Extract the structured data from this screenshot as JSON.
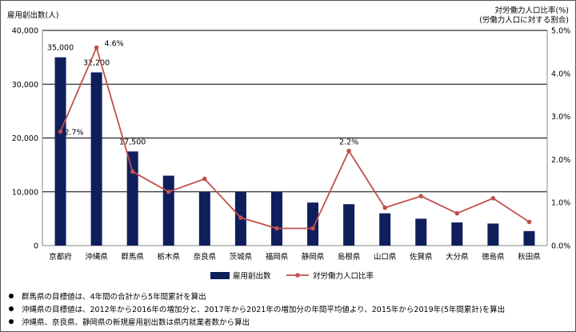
{
  "axis_titles": {
    "left": "雇用創出数(人)",
    "right_line1": "対労働力人口比率(%)",
    "right_line2": "(労働力人口に対する割合)"
  },
  "notes": [
    "群馬県の目標値は、4年間の合計から5年間累計を算出",
    "沖縄県の目標値は、2012年から2016年の増加分と、2017年から2021年の増加分の年間平均値より、2015年から2019年(5年間累計)を算出",
    "沖縄県、奈良県、静岡県の新規雇用創出数は県内就業者数から算出"
  ],
  "chart_data": {
    "type": "bar",
    "categories": [
      "京都府",
      "沖縄県",
      "群馬県",
      "栃木県",
      "奈良県",
      "茨城県",
      "福岡県",
      "静岡県",
      "島根県",
      "山口県",
      "佐賀県",
      "大分県",
      "徳島県",
      "秋田県"
    ],
    "series": [
      {
        "name": "雇用創出数",
        "type": "bar",
        "axis": "left",
        "color": "#0f1f5c",
        "values": [
          35000,
          32200,
          17500,
          13000,
          10000,
          10000,
          10000,
          8000,
          7700,
          6000,
          5000,
          4300,
          4100,
          2700
        ]
      },
      {
        "name": "対労働力人口比率",
        "type": "line",
        "axis": "right",
        "color": "#c0504d",
        "values": [
          2.65,
          4.6,
          1.72,
          1.25,
          1.55,
          0.65,
          0.4,
          0.4,
          2.2,
          0.88,
          1.15,
          0.75,
          1.1,
          0.55
        ]
      }
    ],
    "bar_labels": [
      {
        "index": 0,
        "text": "35,000"
      },
      {
        "index": 1,
        "text": "32,200"
      },
      {
        "index": 2,
        "text": "17,500"
      }
    ],
    "line_labels": [
      {
        "index": 0,
        "text": "2.7%"
      },
      {
        "index": 1,
        "text": "4.6%"
      },
      {
        "index": 8,
        "text": "2.2%"
      }
    ],
    "y_left": {
      "min": 0,
      "max": 40000,
      "ticks": [
        "0",
        "10,000",
        "20,000",
        "30,000",
        "40,000"
      ],
      "tick_values": [
        0,
        10000,
        20000,
        30000,
        40000
      ]
    },
    "y_right": {
      "min": 0,
      "max": 5,
      "ticks": [
        "0.0%",
        "1.0%",
        "2.0%",
        "3.0%",
        "4.0%",
        "5.0%"
      ],
      "tick_values": [
        0,
        1,
        2,
        3,
        4,
        5
      ]
    },
    "grid": true,
    "legend_position": "bottom"
  }
}
